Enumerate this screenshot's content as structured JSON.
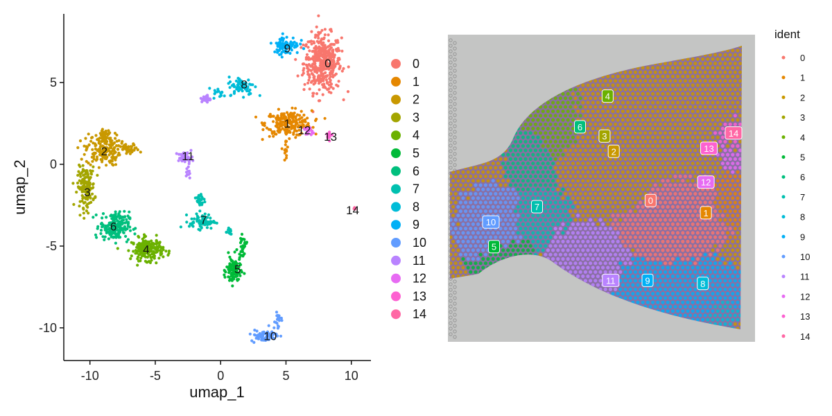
{
  "colors": {
    "0": "#F8766D",
    "1": "#E58700",
    "2": "#C99800",
    "3": "#A3A500",
    "4": "#6BB100",
    "5": "#00BA38",
    "6": "#00BF7D",
    "7": "#00C0AF",
    "8": "#00BCD8",
    "9": "#00B0F6",
    "10": "#619CFF",
    "11": "#B983FF",
    "12": "#E76BF3",
    "13": "#FD61D1",
    "14": "#FF67A4"
  },
  "chart_data": [
    {
      "type": "scatter",
      "title": "",
      "xlabel": "umap_1",
      "ylabel": "umap_2",
      "xlim": [
        -12,
        11.5
      ],
      "ylim": [
        -12,
        9.2
      ],
      "xticks": [
        -10,
        -5,
        0,
        5,
        10
      ],
      "xtick_labels": [
        "-10",
        "-5",
        "0",
        "5",
        "10"
      ],
      "yticks": [
        -10,
        -5,
        0,
        5
      ],
      "ytick_labels": [
        "-10",
        "-5",
        "0",
        "5"
      ],
      "grid": false,
      "legend": {
        "position": "right",
        "entries": [
          "0",
          "1",
          "2",
          "3",
          "4",
          "5",
          "6",
          "7",
          "8",
          "9",
          "10",
          "11",
          "12",
          "13",
          "14"
        ]
      },
      "cluster_labels": [
        {
          "label": "0",
          "x": 8.2,
          "y": 6.2
        },
        {
          "label": "1",
          "x": 5.1,
          "y": 2.5
        },
        {
          "label": "2",
          "x": -8.9,
          "y": 0.8
        },
        {
          "label": "3",
          "x": -10.2,
          "y": -1.7
        },
        {
          "label": "4",
          "x": -5.7,
          "y": -5.2
        },
        {
          "label": "5",
          "x": 1.3,
          "y": -6.4
        },
        {
          "label": "6",
          "x": -8.2,
          "y": -3.8
        },
        {
          "label": "7",
          "x": -1.3,
          "y": -3.4
        },
        {
          "label": "8",
          "x": 1.8,
          "y": 4.9
        },
        {
          "label": "9",
          "x": 5.1,
          "y": 7.1
        },
        {
          "label": "10",
          "x": 3.8,
          "y": -10.5
        },
        {
          "label": "11",
          "x": -2.5,
          "y": 0.5
        },
        {
          "label": "12",
          "x": 6.4,
          "y": 2.1
        },
        {
          "label": "13",
          "x": 8.4,
          "y": 1.7
        },
        {
          "label": "14",
          "x": 10.1,
          "y": -2.8
        }
      ],
      "clusters": [
        {
          "id": "0",
          "blobs": [
            [
              7.8,
              6.2,
              1.3,
              1.6,
              430
            ]
          ]
        },
        {
          "id": "1",
          "blobs": [
            [
              5.2,
              2.5,
              1.6,
              0.7,
              230
            ],
            [
              5.0,
              0.8,
              0.15,
              0.6,
              15
            ]
          ]
        },
        {
          "id": "2",
          "blobs": [
            [
              -9.0,
              0.9,
              1.2,
              0.9,
              170
            ],
            [
              -7.0,
              0.9,
              0.7,
              0.3,
              45
            ],
            [
              -8.8,
              1.8,
              0.5,
              0.4,
              30
            ]
          ]
        },
        {
          "id": "3",
          "blobs": [
            [
              -10.3,
              -1.4,
              0.6,
              1.1,
              150
            ]
          ]
        },
        {
          "id": "4",
          "blobs": [
            [
              -5.6,
              -5.2,
              1.1,
              0.6,
              200
            ]
          ]
        },
        {
          "id": "5",
          "blobs": [
            [
              1.0,
              -6.5,
              0.5,
              0.8,
              110
            ],
            [
              1.7,
              -5.0,
              0.25,
              0.5,
              25
            ]
          ]
        },
        {
          "id": "6",
          "blobs": [
            [
              -8.1,
              -3.8,
              1.0,
              0.8,
              200
            ]
          ]
        },
        {
          "id": "7",
          "blobs": [
            [
              -1.4,
              -3.5,
              0.9,
              0.4,
              70
            ],
            [
              -1.5,
              -2.2,
              0.3,
              0.5,
              25
            ],
            [
              0.6,
              -4.1,
              0.3,
              0.3,
              15
            ]
          ]
        },
        {
          "id": "8",
          "blobs": [
            [
              1.6,
              4.8,
              0.9,
              0.5,
              75
            ],
            [
              -0.1,
              4.3,
              0.4,
              0.3,
              15
            ]
          ]
        },
        {
          "id": "9",
          "blobs": [
            [
              5.0,
              7.3,
              0.9,
              0.5,
              90
            ]
          ]
        },
        {
          "id": "10",
          "blobs": [
            [
              3.3,
              -10.5,
              0.9,
              0.3,
              70
            ],
            [
              4.3,
              -9.5,
              0.4,
              0.5,
              20
            ]
          ]
        },
        {
          "id": "11",
          "blobs": [
            [
              -2.7,
              0.4,
              0.5,
              0.3,
              45
            ],
            [
              -2.5,
              -0.5,
              0.2,
              0.4,
              10
            ],
            [
              -1.1,
              4.0,
              0.3,
              0.2,
              30
            ]
          ]
        },
        {
          "id": "12",
          "blobs": [
            [
              6.7,
              2.0,
              0.3,
              0.25,
              20
            ]
          ]
        },
        {
          "id": "13",
          "blobs": [
            [
              8.3,
              1.8,
              0.2,
              0.3,
              12
            ]
          ]
        },
        {
          "id": "14",
          "blobs": [
            [
              10.2,
              -2.7,
              0.08,
              0.1,
              4
            ]
          ]
        }
      ]
    },
    {
      "type": "scatter",
      "title": "",
      "description_type": "spatial",
      "legend": {
        "title": "ident",
        "position": "right",
        "entries": [
          "0",
          "1",
          "2",
          "3",
          "4",
          "5",
          "6",
          "7",
          "8",
          "9",
          "10",
          "11",
          "12",
          "13",
          "14"
        ]
      },
      "regions": [
        {
          "id": "2",
          "x": [
            0.28,
            0.98
          ],
          "y": [
            0.05,
            0.6
          ]
        },
        {
          "id": "4",
          "x": [
            0.22,
            0.58
          ],
          "y": [
            0.08,
            0.5
          ]
        },
        {
          "id": "6",
          "x": [
            0.18,
            0.45
          ],
          "y": [
            0.2,
            0.55
          ]
        },
        {
          "id": "3",
          "x": [
            0.42,
            0.7
          ],
          "y": [
            0.2,
            0.5
          ]
        },
        {
          "id": "0",
          "x": [
            0.52,
            0.95
          ],
          "y": [
            0.3,
            0.75
          ]
        },
        {
          "id": "1",
          "x": [
            0.72,
            0.98
          ],
          "y": [
            0.35,
            0.7
          ]
        },
        {
          "id": "12",
          "x": [
            0.82,
            0.98
          ],
          "y": [
            0.3,
            0.58
          ]
        },
        {
          "id": "13",
          "x": [
            0.84,
            0.98
          ],
          "y": [
            0.22,
            0.45
          ]
        },
        {
          "id": "9",
          "x": [
            0.52,
            0.98
          ],
          "y": [
            0.7,
            0.96
          ]
        },
        {
          "id": "8",
          "x": [
            0.72,
            0.98
          ],
          "y": [
            0.72,
            0.98
          ]
        },
        {
          "id": "11",
          "x": [
            0.3,
            0.6
          ],
          "y": [
            0.6,
            0.92
          ]
        },
        {
          "id": "7",
          "x": [
            0.22,
            0.4
          ],
          "y": [
            0.4,
            0.72
          ]
        },
        {
          "id": "10",
          "x": [
            0.02,
            0.26
          ],
          "y": [
            0.48,
            0.76
          ]
        },
        {
          "id": "5",
          "x": [
            0.04,
            0.3
          ],
          "y": [
            0.6,
            0.82
          ]
        }
      ],
      "labels": [
        {
          "label": "4",
          "x": 0.52,
          "y": 0.2
        },
        {
          "label": "6",
          "x": 0.43,
          "y": 0.3
        },
        {
          "label": "3",
          "x": 0.51,
          "y": 0.33
        },
        {
          "label": "2",
          "x": 0.54,
          "y": 0.38
        },
        {
          "label": "14",
          "x": 0.93,
          "y": 0.32
        },
        {
          "label": "13",
          "x": 0.85,
          "y": 0.37
        },
        {
          "label": "12",
          "x": 0.84,
          "y": 0.48
        },
        {
          "label": "0",
          "x": 0.66,
          "y": 0.54
        },
        {
          "label": "1",
          "x": 0.84,
          "y": 0.58
        },
        {
          "label": "7",
          "x": 0.29,
          "y": 0.56
        },
        {
          "label": "10",
          "x": 0.14,
          "y": 0.61
        },
        {
          "label": "5",
          "x": 0.15,
          "y": 0.69
        },
        {
          "label": "11",
          "x": 0.53,
          "y": 0.8
        },
        {
          "label": "9",
          "x": 0.65,
          "y": 0.8
        },
        {
          "label": "8",
          "x": 0.83,
          "y": 0.81
        }
      ]
    }
  ]
}
